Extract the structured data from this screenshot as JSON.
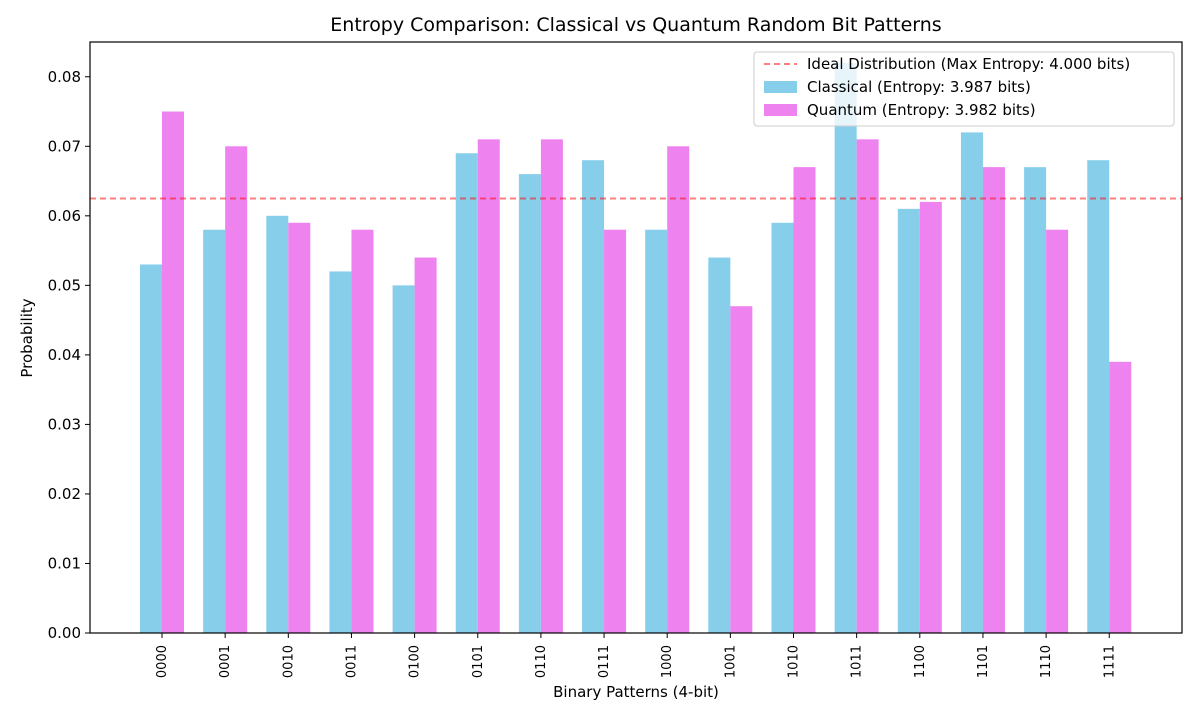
{
  "chart_data": {
    "type": "bar",
    "title": "Entropy Comparison: Classical vs Quantum Random Bit Patterns",
    "xlabel": "Binary Patterns (4-bit)",
    "ylabel": "Probability",
    "ylim": [
      0,
      0.085
    ],
    "yticks": [
      "0.00",
      "0.01",
      "0.02",
      "0.03",
      "0.04",
      "0.05",
      "0.06",
      "0.07",
      "0.08"
    ],
    "categories": [
      "0000",
      "0001",
      "0010",
      "0011",
      "0100",
      "0101",
      "0110",
      "0111",
      "1000",
      "1001",
      "1010",
      "1011",
      "1100",
      "1101",
      "1110",
      "1111"
    ],
    "series": [
      {
        "name": "Classical (Entropy: 3.987 bits)",
        "color": "#87ceeb",
        "values": [
          0.053,
          0.058,
          0.06,
          0.052,
          0.05,
          0.069,
          0.066,
          0.068,
          0.058,
          0.054,
          0.059,
          0.082,
          0.061,
          0.072,
          0.067,
          0.068
        ]
      },
      {
        "name": "Quantum (Entropy: 3.982 bits)",
        "color": "#ee82ee",
        "values": [
          0.075,
          0.07,
          0.059,
          0.058,
          0.054,
          0.071,
          0.071,
          0.058,
          0.07,
          0.047,
          0.067,
          0.071,
          0.062,
          0.067,
          0.058,
          0.039
        ]
      }
    ],
    "reference_line": {
      "name": "Ideal Distribution (Max Entropy: 4.000 bits)",
      "value": 0.0625,
      "color": "#ff0000",
      "style": "dashed"
    },
    "legend_placement": "top-right",
    "grid": false
  }
}
